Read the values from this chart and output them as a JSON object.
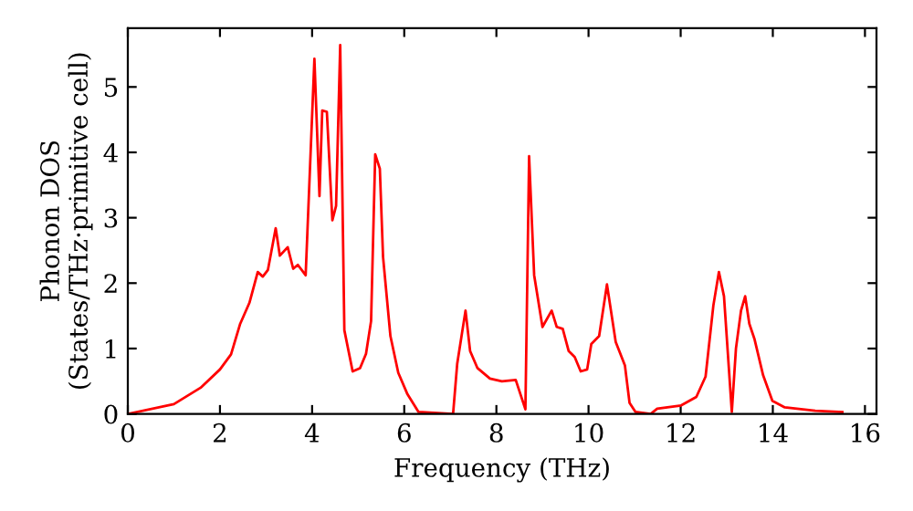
{
  "chart_data": {
    "type": "line",
    "xlabel": "Frequency (THz)",
    "ylabel": "Phonon DOS\n(States/THz·primitive cell)",
    "xlim": [
      0,
      16.25
    ],
    "ylim": [
      0,
      5.9
    ],
    "xticks": [
      0,
      2,
      4,
      6,
      8,
      10,
      12,
      14,
      16
    ],
    "yticks": [
      0,
      1,
      2,
      3,
      4,
      5
    ],
    "grid": false,
    "marker": "none",
    "line_style": "solid",
    "series": [
      {
        "color": "#ff0000",
        "x": [
          0,
          1.0,
          1.58,
          2.0,
          2.24,
          2.44,
          2.64,
          2.82,
          2.93,
          3.04,
          3.21,
          3.3,
          3.47,
          3.59,
          3.69,
          3.86,
          4.05,
          4.16,
          4.22,
          4.32,
          4.44,
          4.52,
          4.61,
          4.7,
          4.88,
          5.04,
          5.17,
          5.28,
          5.37,
          5.47,
          5.54,
          5.7,
          5.87,
          6.07,
          6.31,
          7.06,
          7.15,
          7.33,
          7.43,
          7.59,
          7.86,
          8.12,
          8.42,
          8.63,
          8.71,
          8.82,
          9.0,
          9.2,
          9.31,
          9.44,
          9.57,
          9.7,
          9.83,
          9.97,
          10.06,
          10.23,
          10.4,
          10.59,
          10.79,
          10.89,
          11.02,
          11.35,
          11.49,
          12.01,
          12.34,
          12.54,
          12.71,
          12.83,
          12.94,
          13.11,
          13.2,
          13.31,
          13.4,
          13.49,
          13.6,
          13.79,
          13.99,
          14.26,
          14.92,
          15.51
        ],
        "values": [
          0,
          0.15,
          0.4,
          0.68,
          0.91,
          1.38,
          1.7,
          2.17,
          2.1,
          2.2,
          2.84,
          2.42,
          2.55,
          2.22,
          2.28,
          2.12,
          5.43,
          3.33,
          4.64,
          4.62,
          2.96,
          3.18,
          5.64,
          1.28,
          0.65,
          0.7,
          0.92,
          1.42,
          3.97,
          3.75,
          2.4,
          1.19,
          0.63,
          0.3,
          0.03,
          0,
          0.77,
          1.58,
          0.96,
          0.7,
          0.54,
          0.5,
          0.52,
          0.07,
          3.94,
          2.12,
          1.33,
          1.58,
          1.33,
          1.3,
          0.96,
          0.87,
          0.65,
          0.68,
          1.07,
          1.19,
          1.98,
          1.1,
          0.74,
          0.17,
          0.03,
          0,
          0.08,
          0.13,
          0.26,
          0.57,
          1.66,
          2.17,
          1.8,
          0.03,
          1.0,
          1.58,
          1.8,
          1.38,
          1.15,
          0.59,
          0.2,
          0.1,
          0.05,
          0.03
        ]
      }
    ]
  }
}
